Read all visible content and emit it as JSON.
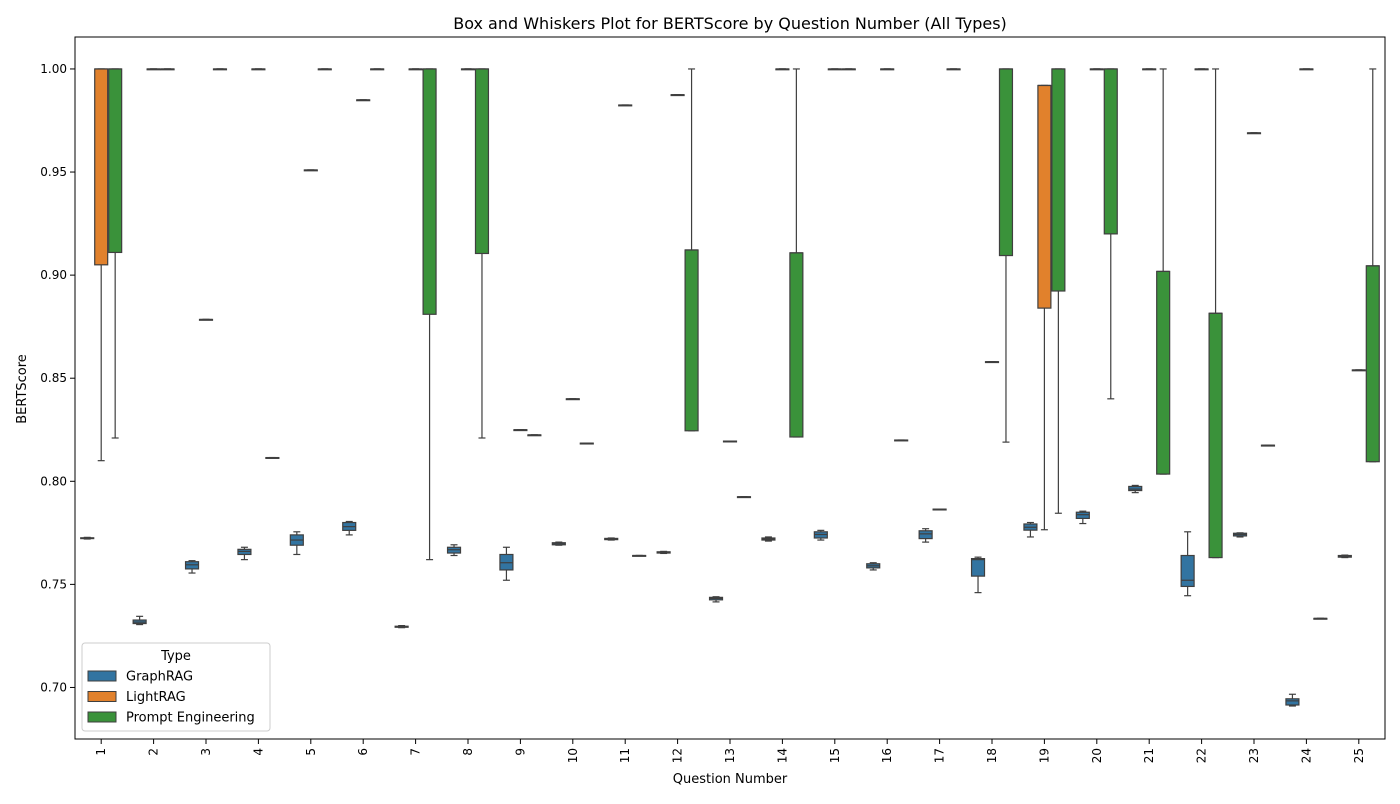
{
  "chart_data": {
    "type": "box",
    "title": "Box and Whiskers Plot for BERTScore by Question Number (All Types)",
    "xlabel": "Question Number",
    "ylabel": "BERTScore",
    "categories": [
      "1",
      "2",
      "3",
      "4",
      "5",
      "6",
      "7",
      "8",
      "9",
      "10",
      "11",
      "12",
      "13",
      "14",
      "15",
      "16",
      "17",
      "18",
      "19",
      "20",
      "21",
      "22",
      "23",
      "24",
      "25"
    ],
    "ylim": [
      0.675,
      1.0155
    ],
    "yticks": [
      "0.70",
      "0.75",
      "0.80",
      "0.85",
      "0.90",
      "0.95",
      "1.00"
    ],
    "ytick_values": [
      0.7,
      0.75,
      0.8,
      0.85,
      0.9,
      0.95,
      1.0
    ],
    "grid": false,
    "legend": {
      "title": "Type",
      "placement": "lower-left"
    },
    "series": [
      {
        "name": "GraphRAG",
        "color": "#3274a1",
        "boxes": [
          {
            "q": "1",
            "stats": [
              0.772,
              0.7722,
              0.7724,
              0.7726,
              0.7728
            ]
          },
          {
            "q": "2",
            "stats": [
              0.7305,
              0.731,
              0.7317,
              0.7327,
              0.7345
            ]
          },
          {
            "q": "3",
            "stats": [
              0.7555,
              0.7575,
              0.7595,
              0.761,
              0.7615
            ]
          },
          {
            "q": "4",
            "stats": [
              0.762,
              0.7645,
              0.766,
              0.767,
              0.768
            ]
          },
          {
            "q": "5",
            "stats": [
              0.7645,
              0.769,
              0.7715,
              0.774,
              0.7755
            ]
          },
          {
            "q": "6",
            "stats": [
              0.774,
              0.7762,
              0.778,
              0.78,
              0.7805
            ]
          },
          {
            "q": "7",
            "stats": [
              0.729,
              0.7292,
              0.7295,
              0.7297,
              0.73
            ]
          },
          {
            "q": "8",
            "stats": [
              0.764,
              0.7652,
              0.7668,
              0.768,
              0.7692
            ]
          },
          {
            "q": "9",
            "stats": [
              0.752,
              0.757,
              0.7605,
              0.7645,
              0.768
            ]
          },
          {
            "q": "10",
            "stats": [
              0.769,
              0.7692,
              0.7697,
              0.7702,
              0.7705
            ]
          },
          {
            "q": "11",
            "stats": [
              0.7715,
              0.7717,
              0.772,
              0.7723,
              0.7725
            ]
          },
          {
            "q": "12",
            "stats": [
              0.765,
              0.7652,
              0.7655,
              0.7658,
              0.766
            ]
          },
          {
            "q": "13",
            "stats": [
              0.7415,
              0.7425,
              0.7432,
              0.7437,
              0.744
            ]
          },
          {
            "q": "14",
            "stats": [
              0.771,
              0.7715,
              0.772,
              0.7725,
              0.773
            ]
          },
          {
            "q": "15",
            "stats": [
              0.7715,
              0.7725,
              0.7742,
              0.7755,
              0.7762
            ]
          },
          {
            "q": "16",
            "stats": [
              0.757,
              0.758,
              0.759,
              0.76,
              0.7605
            ]
          },
          {
            "q": "17",
            "stats": [
              0.7705,
              0.7722,
              0.7745,
              0.776,
              0.777
            ]
          },
          {
            "q": "18",
            "stats": [
              0.746,
              0.754,
              0.762,
              0.7625,
              0.7632
            ]
          },
          {
            "q": "19",
            "stats": [
              0.773,
              0.7763,
              0.7777,
              0.7793,
              0.78
            ]
          },
          {
            "q": "20",
            "stats": [
              0.7795,
              0.782,
              0.7838,
              0.785,
              0.7855
            ]
          },
          {
            "q": "21",
            "stats": [
              0.7945,
              0.7955,
              0.7962,
              0.7975,
              0.798
            ]
          },
          {
            "q": "22",
            "stats": [
              0.7445,
              0.749,
              0.752,
              0.764,
              0.7755
            ]
          },
          {
            "q": "23",
            "stats": [
              0.773,
              0.7735,
              0.7742,
              0.7748,
              0.775
            ]
          },
          {
            "q": "24",
            "stats": [
              0.691,
              0.6915,
              0.6935,
              0.6945,
              0.6967
            ]
          },
          {
            "q": "25",
            "stats": [
              0.763,
              0.7632,
              0.7637,
              0.764,
              0.7642
            ]
          }
        ]
      },
      {
        "name": "LightRAG",
        "color": "#e1812c",
        "boxes": [
          {
            "q": "1",
            "stats": [
              0.81,
              0.905,
              1.0,
              1.0,
              1.0
            ]
          },
          {
            "q": "2",
            "stats": [
              1.0,
              1.0,
              1.0,
              1.0,
              1.0
            ]
          },
          {
            "q": "3",
            "stats": [
              0.8785,
              0.8785,
              0.8785,
              0.8785,
              0.8785
            ]
          },
          {
            "q": "4",
            "stats": [
              1.0,
              1.0,
              1.0,
              1.0,
              1.0
            ]
          },
          {
            "q": "5",
            "stats": [
              0.951,
              0.951,
              0.951,
              0.951,
              0.951
            ]
          },
          {
            "q": "6",
            "stats": [
              0.985,
              0.985,
              0.985,
              0.985,
              0.985
            ]
          },
          {
            "q": "7",
            "stats": [
              1.0,
              1.0,
              1.0,
              1.0,
              1.0
            ]
          },
          {
            "q": "8",
            "stats": [
              1.0,
              1.0,
              1.0,
              1.0,
              1.0
            ]
          },
          {
            "q": "9",
            "stats": [
              0.825,
              0.825,
              0.825,
              0.825,
              0.825
            ]
          },
          {
            "q": "10",
            "stats": [
              0.84,
              0.84,
              0.84,
              0.84,
              0.84
            ]
          },
          {
            "q": "11",
            "stats": [
              0.9825,
              0.9825,
              0.9825,
              0.9825,
              0.9825
            ]
          },
          {
            "q": "12",
            "stats": [
              0.9875,
              0.9875,
              0.9875,
              0.9875,
              0.9875
            ]
          },
          {
            "q": "13",
            "stats": [
              0.8195,
              0.8195,
              0.8195,
              0.8195,
              0.8195
            ]
          },
          {
            "q": "14",
            "stats": [
              1.0,
              1.0,
              1.0,
              1.0,
              1.0
            ]
          },
          {
            "q": "15",
            "stats": [
              1.0,
              1.0,
              1.0,
              1.0,
              1.0
            ]
          },
          {
            "q": "16",
            "stats": [
              1.0,
              1.0,
              1.0,
              1.0,
              1.0
            ]
          },
          {
            "q": "17",
            "stats": [
              0.7865,
              0.7865,
              0.7865,
              0.7865,
              0.7865
            ]
          },
          {
            "q": "18",
            "stats": [
              0.858,
              0.858,
              0.858,
              0.858,
              0.858
            ]
          },
          {
            "q": "19",
            "stats": [
              0.7765,
              0.884,
              0.992,
              0.992,
              0.992
            ]
          },
          {
            "q": "20",
            "stats": [
              1.0,
              1.0,
              1.0,
              1.0,
              1.0
            ]
          },
          {
            "q": "21",
            "stats": [
              1.0,
              1.0,
              1.0,
              1.0,
              1.0
            ]
          },
          {
            "q": "22",
            "stats": [
              1.0,
              1.0,
              1.0,
              1.0,
              1.0
            ]
          },
          {
            "q": "23",
            "stats": [
              0.969,
              0.969,
              0.969,
              0.969,
              0.969
            ]
          },
          {
            "q": "24",
            "stats": [
              1.0,
              1.0,
              1.0,
              1.0,
              1.0
            ]
          },
          {
            "q": "25",
            "stats": [
              0.854,
              0.854,
              0.854,
              0.854,
              0.854
            ]
          }
        ]
      },
      {
        "name": "Prompt Engineering",
        "color": "#3a923a",
        "boxes": [
          {
            "q": "1",
            "stats": [
              0.821,
              0.911,
              1.0,
              1.0,
              1.0
            ]
          },
          {
            "q": "2",
            "stats": [
              1.0,
              1.0,
              1.0,
              1.0,
              1.0
            ]
          },
          {
            "q": "3",
            "stats": [
              1.0,
              1.0,
              1.0,
              1.0,
              1.0
            ]
          },
          {
            "q": "4",
            "stats": [
              0.8115,
              0.8115,
              0.8115,
              0.8115,
              0.8115
            ]
          },
          {
            "q": "5",
            "stats": [
              1.0,
              1.0,
              1.0,
              1.0,
              1.0
            ]
          },
          {
            "q": "6",
            "stats": [
              1.0,
              1.0,
              1.0,
              1.0,
              1.0
            ]
          },
          {
            "q": "7",
            "stats": [
              0.762,
              0.881,
              1.0,
              1.0,
              1.0
            ]
          },
          {
            "q": "8",
            "stats": [
              0.821,
              0.9105,
              1.0,
              1.0,
              1.0
            ]
          },
          {
            "q": "9",
            "stats": [
              0.8225,
              0.8225,
              0.8225,
              0.8225,
              0.8225
            ]
          },
          {
            "q": "10",
            "stats": [
              0.8185,
              0.8185,
              0.8185,
              0.8185,
              0.8185
            ]
          },
          {
            "q": "11",
            "stats": [
              0.764,
              0.764,
              0.764,
              0.764,
              0.764
            ]
          },
          {
            "q": "12",
            "stats": [
              0.8245,
              0.8245,
              0.9122,
              0.9122,
              1.0
            ]
          },
          {
            "q": "13",
            "stats": [
              0.7925,
              0.7925,
              0.7925,
              0.7925,
              0.7925
            ]
          },
          {
            "q": "14",
            "stats": [
              0.8215,
              0.8215,
              0.9108,
              0.9108,
              1.0
            ]
          },
          {
            "q": "15",
            "stats": [
              1.0,
              1.0,
              1.0,
              1.0,
              1.0
            ]
          },
          {
            "q": "16",
            "stats": [
              0.82,
              0.82,
              0.82,
              0.82,
              0.82
            ]
          },
          {
            "q": "17",
            "stats": [
              1.0,
              1.0,
              1.0,
              1.0,
              1.0
            ]
          },
          {
            "q": "18",
            "stats": [
              0.819,
              0.9095,
              1.0,
              1.0,
              1.0
            ]
          },
          {
            "q": "19",
            "stats": [
              0.7845,
              0.8923,
              1.0,
              1.0,
              1.0
            ]
          },
          {
            "q": "20",
            "stats": [
              0.84,
              0.92,
              1.0,
              1.0,
              1.0
            ]
          },
          {
            "q": "21",
            "stats": [
              0.8035,
              0.8035,
              0.9018,
              0.9018,
              1.0
            ]
          },
          {
            "q": "22",
            "stats": [
              0.763,
              0.763,
              0.8815,
              0.8815,
              1.0
            ]
          },
          {
            "q": "23",
            "stats": [
              0.8175,
              0.8175,
              0.8175,
              0.8175,
              0.8175
            ]
          },
          {
            "q": "24",
            "stats": [
              0.7335,
              0.7335,
              0.7335,
              0.7335,
              0.7335
            ]
          },
          {
            "q": "25",
            "stats": [
              0.8095,
              0.8095,
              0.9045,
              0.9045,
              1.0
            ]
          }
        ]
      }
    ]
  }
}
